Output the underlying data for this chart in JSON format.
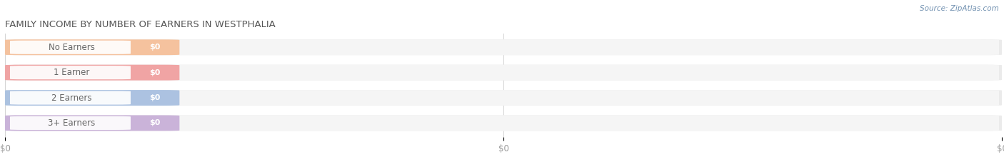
{
  "title": "FAMILY INCOME BY NUMBER OF EARNERS IN WESTPHALIA",
  "source": "Source: ZipAtlas.com",
  "categories": [
    "No Earners",
    "1 Earner",
    "2 Earners",
    "3+ Earners"
  ],
  "values": [
    0,
    0,
    0,
    0
  ],
  "pill_colors": [
    "#f5c09a",
    "#f0a0a0",
    "#a8c0e0",
    "#c8b0d8"
  ],
  "bar_bg_color": "#ebebeb",
  "pill_bg_color": "#f8f8f8",
  "background_color": "#ffffff",
  "title_color": "#555555",
  "source_color": "#7090b0",
  "tick_label_color": "#999999",
  "value_label_color": "#ffffff",
  "cat_label_color": "#666666",
  "figsize": [
    14.06,
    2.34
  ],
  "dpi": 100,
  "title_fontsize": 9.5,
  "label_fontsize": 8.5,
  "value_fontsize": 8,
  "tick_fontsize": 8.5
}
